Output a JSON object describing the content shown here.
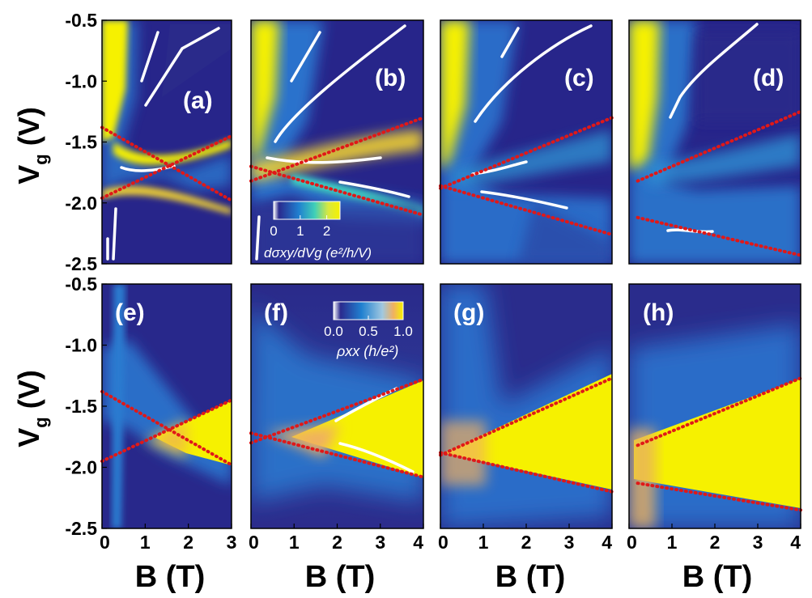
{
  "figure": {
    "y_axis_label_main": "V",
    "y_axis_label_sub": "g",
    "y_axis_label_unit": " (V)",
    "x_axis_label": "B (T)"
  },
  "colors": {
    "low": "#27258a",
    "mid": "#1f7fd0",
    "cyan": "#3fd0c0",
    "high": "#f6f100",
    "orange": "#f0a050",
    "dotted": "#e01818",
    "trace": "#ffffff"
  },
  "colorbars": {
    "top": {
      "ticks": [
        "0",
        "1",
        "2"
      ],
      "range": [
        0,
        2.5
      ],
      "label": "dσxy/dVg (e²/h/V)"
    },
    "bottom": {
      "ticks": [
        "0.0",
        "0.5",
        "1.0"
      ],
      "range": [
        0,
        1.0
      ],
      "label": "ρxx (h/e²)"
    }
  },
  "chart_data": [
    {
      "type": "heatmap",
      "panel": "(a)",
      "quantity": "dσxy/dVg",
      "ylabel": "Vg (V)",
      "ylim": [
        -2.5,
        -0.5
      ],
      "yticks": [
        "-0.5",
        "-1.0",
        "-1.5",
        "-2.0",
        "-2.5"
      ],
      "xlim": [
        0,
        3
      ],
      "xticks": [],
      "dotted_lines": [
        {
          "from": [
            0,
            -1.38
          ],
          "to": [
            3,
            -1.98
          ]
        },
        {
          "from": [
            0,
            -1.96
          ],
          "to": [
            3,
            -1.45
          ]
        }
      ]
    },
    {
      "type": "heatmap",
      "panel": "(b)",
      "quantity": "dσxy/dVg",
      "ylim": [
        -2.5,
        -0.5
      ],
      "xlim": [
        0,
        4
      ],
      "xticks": [],
      "dotted_lines": [
        {
          "from": [
            0,
            -1.7
          ],
          "to": [
            4,
            -2.1
          ]
        },
        {
          "from": [
            0,
            -1.82
          ],
          "to": [
            4,
            -1.3
          ]
        }
      ]
    },
    {
      "type": "heatmap",
      "panel": "(c)",
      "quantity": "dσxy/dVg",
      "ylim": [
        -2.5,
        -0.5
      ],
      "xlim": [
        0,
        4
      ],
      "xticks": [],
      "dotted_lines": [
        {
          "from": [
            0,
            -1.86
          ],
          "to": [
            4,
            -2.26
          ]
        },
        {
          "from": [
            0,
            -1.88
          ],
          "to": [
            4,
            -1.3
          ]
        }
      ]
    },
    {
      "type": "heatmap",
      "panel": "(d)",
      "quantity": "dσxy/dVg",
      "ylim": [
        -2.5,
        -0.5
      ],
      "xlim": [
        0,
        4
      ],
      "xticks": [],
      "dotted_lines": [
        {
          "from": [
            0.2,
            -2.12
          ],
          "to": [
            4,
            -2.43
          ]
        },
        {
          "from": [
            0.2,
            -1.82
          ],
          "to": [
            4,
            -1.25
          ]
        }
      ]
    },
    {
      "type": "heatmap",
      "panel": "(e)",
      "quantity": "ρxx",
      "ylabel": "Vg (V)",
      "xlabel": "B (T)",
      "ylim": [
        -2.5,
        -0.5
      ],
      "yticks": [
        "-0.5",
        "-1.0",
        "-1.5",
        "-2.0",
        "-2.5"
      ],
      "xlim": [
        0,
        3
      ],
      "xticks": [
        "0",
        "1",
        "2",
        "3"
      ],
      "dotted_lines": [
        {
          "from": [
            0,
            -1.38
          ],
          "to": [
            3,
            -1.98
          ]
        },
        {
          "from": [
            0,
            -1.95
          ],
          "to": [
            3,
            -1.45
          ]
        }
      ]
    },
    {
      "type": "heatmap",
      "panel": "(f)",
      "quantity": "ρxx",
      "xlabel": "B (T)",
      "ylim": [
        -2.5,
        -0.5
      ],
      "xlim": [
        0,
        4
      ],
      "xticks": [
        "0",
        "1",
        "2",
        "3",
        "4"
      ],
      "dotted_lines": [
        {
          "from": [
            0,
            -1.72
          ],
          "to": [
            4,
            -2.08
          ]
        },
        {
          "from": [
            0,
            -1.8
          ],
          "to": [
            4,
            -1.28
          ]
        }
      ]
    },
    {
      "type": "heatmap",
      "panel": "(g)",
      "quantity": "ρxx",
      "xlabel": "B (T)",
      "ylim": [
        -2.5,
        -0.5
      ],
      "xlim": [
        0,
        4
      ],
      "xticks": [
        "0",
        "1",
        "2",
        "3",
        "4"
      ],
      "dotted_lines": [
        {
          "from": [
            0,
            -1.88
          ],
          "to": [
            4,
            -2.2
          ]
        },
        {
          "from": [
            0,
            -1.9
          ],
          "to": [
            4,
            -1.27
          ]
        }
      ]
    },
    {
      "type": "heatmap",
      "panel": "(h)",
      "quantity": "ρxx",
      "xlabel": "B (T)",
      "ylim": [
        -2.5,
        -0.5
      ],
      "xlim": [
        0,
        4
      ],
      "xticks": [
        "0",
        "1",
        "2",
        "3",
        "4"
      ],
      "dotted_lines": [
        {
          "from": [
            0.2,
            -2.13
          ],
          "to": [
            4,
            -2.35
          ]
        },
        {
          "from": [
            0.2,
            -1.82
          ],
          "to": [
            4,
            -1.27
          ]
        }
      ]
    }
  ]
}
